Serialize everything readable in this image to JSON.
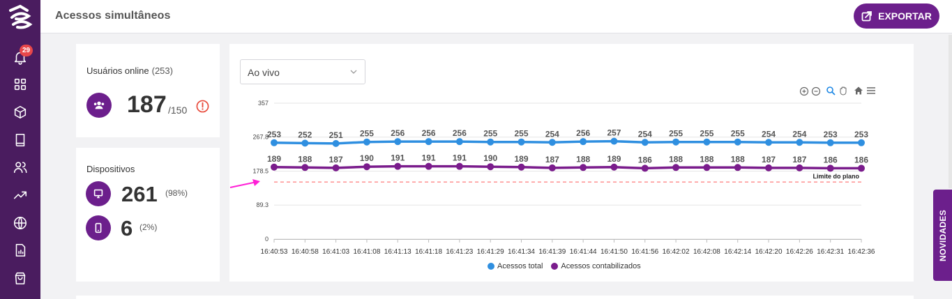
{
  "sidebar": {
    "notification_count": "29",
    "items": [
      "bell-icon",
      "grid-icon",
      "cube-icon",
      "book-icon",
      "users-icon",
      "trending-icon",
      "globe-icon",
      "report-icon",
      "bag-icon"
    ]
  },
  "header": {
    "title": "Acessos simultâneos",
    "export_label": "EXPORTAR"
  },
  "users_card": {
    "label": "Usuários online",
    "total": "(253)",
    "value": "187",
    "limit": "/150"
  },
  "devices_card": {
    "label": "Dispositivos",
    "desktop_value": "261",
    "desktop_pct": "(98%)",
    "mobile_value": "6",
    "mobile_pct": "(2%)"
  },
  "filter": {
    "selected": "Ao vivo"
  },
  "side_tab": {
    "label": "NOVIDADES"
  },
  "colors": {
    "brand": "#6c1f8c",
    "sidebar": "#4a1c5f",
    "series_total": "#2f8fe0",
    "series_counted": "#7a1c8c",
    "limit_line": "#ff5a5a"
  },
  "chart_data": {
    "type": "line",
    "x": [
      "16:40:53",
      "16:40:58",
      "16:41:03",
      "16:41:08",
      "16:41:13",
      "16:41:18",
      "16:41:23",
      "16:41:29",
      "16:41:34",
      "16:41:39",
      "16:41:44",
      "16:41:50",
      "16:41:56",
      "16:42:02",
      "16:42:08",
      "16:42:14",
      "16:42:20",
      "16:42:26",
      "16:42:31",
      "16:42:36"
    ],
    "series": [
      {
        "name": "Acessos total",
        "color": "#2f8fe0",
        "values": [
          253,
          252,
          251,
          255,
          256,
          256,
          256,
          255,
          255,
          254,
          256,
          257,
          254,
          255,
          255,
          255,
          254,
          254,
          253,
          253
        ]
      },
      {
        "name": "Acessos contabilizados",
        "color": "#7a1c8c",
        "values": [
          189,
          188,
          187,
          190,
          191,
          191,
          191,
          190,
          189,
          187,
          188,
          189,
          186,
          188,
          188,
          188,
          187,
          187,
          186,
          186
        ]
      }
    ],
    "y_ticks": [
      "0",
      "89.3",
      "178.5",
      "267.8",
      "357"
    ],
    "ylim": [
      0,
      357
    ],
    "limit_value": 150,
    "limit_label": "Limite do plano",
    "grid": true,
    "legend_position": "bottom"
  }
}
